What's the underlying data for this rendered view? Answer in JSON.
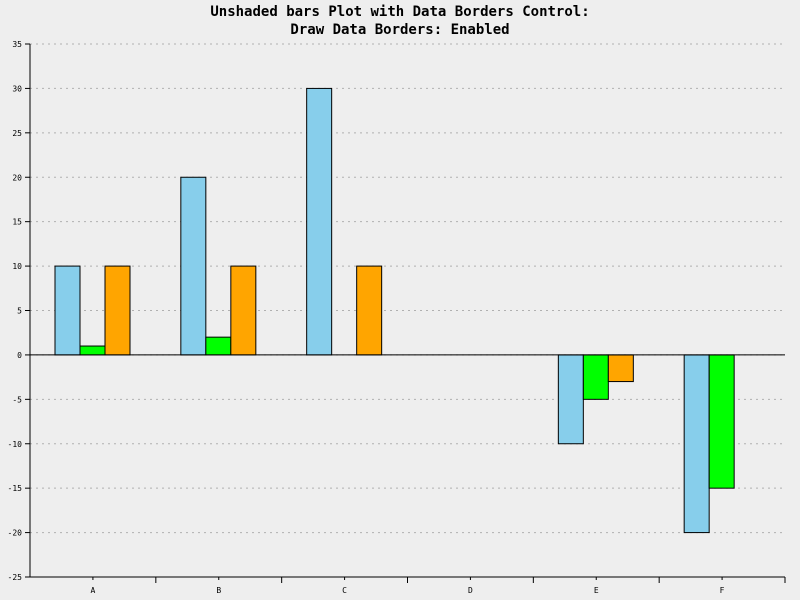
{
  "chart_data": {
    "type": "bar",
    "title": "Unshaded bars Plot with Data Borders Control:",
    "subtitle": "Draw Data Borders: Enabled",
    "categories": [
      "A",
      "B",
      "C",
      "D",
      "E",
      "F"
    ],
    "series": [
      {
        "values": [
          10,
          20,
          30,
          0,
          -10,
          -20
        ],
        "color": "#87ceeb"
      },
      {
        "values": [
          1,
          2,
          0,
          0,
          -5,
          -15
        ],
        "color": "#00ff00"
      },
      {
        "values": [
          10,
          10,
          10,
          0,
          -3,
          0
        ],
        "color": "#ffa500"
      }
    ],
    "ylim": [
      -25,
      35
    ],
    "yticks": [
      -25,
      -20,
      -15,
      -10,
      -5,
      0,
      5,
      10,
      15,
      20,
      25,
      30,
      35
    ],
    "grid": true,
    "data_borders": true
  }
}
